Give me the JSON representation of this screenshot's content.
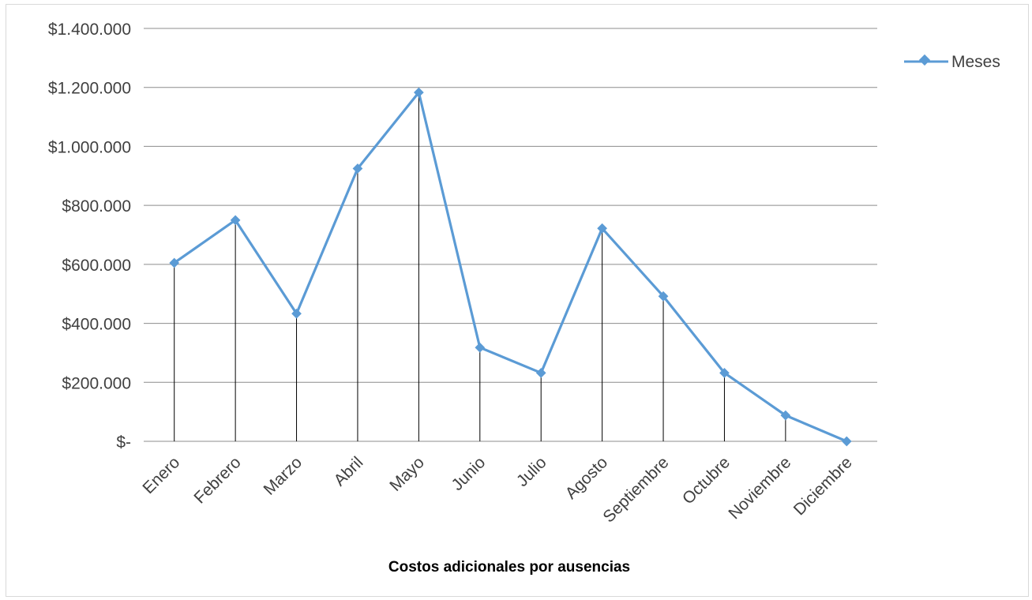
{
  "chart_data": {
    "type": "line",
    "title": "",
    "xlabel": "Costos adicionales por ausencias",
    "ylabel": "",
    "categories": [
      "Enero",
      "Febrero",
      "Marzo",
      "Abril",
      "Mayo",
      "Junio",
      "Julio",
      "Agosto",
      "Septiembre",
      "Octubre",
      "Noviembre",
      "Diciembre"
    ],
    "series": [
      {
        "name": "Meses",
        "color": "#5b9bd5",
        "values": [
          605000,
          750000,
          433000,
          925000,
          1183000,
          318000,
          232000,
          722000,
          492000,
          232000,
          88000,
          0
        ]
      }
    ],
    "ylim": [
      0,
      1400000
    ],
    "yticks": [
      {
        "value": 0,
        "label": "$-"
      },
      {
        "value": 200000,
        "label": "$200.000"
      },
      {
        "value": 400000,
        "label": "$400.000"
      },
      {
        "value": 600000,
        "label": "$600.000"
      },
      {
        "value": 800000,
        "label": "$800.000"
      },
      {
        "value": 1000000,
        "label": "$1.000.000"
      },
      {
        "value": 1200000,
        "label": "$1.200.000"
      },
      {
        "value": 1400000,
        "label": "$1.400.000"
      }
    ],
    "grid": true,
    "drop_lines": true,
    "legend_position": "right"
  }
}
